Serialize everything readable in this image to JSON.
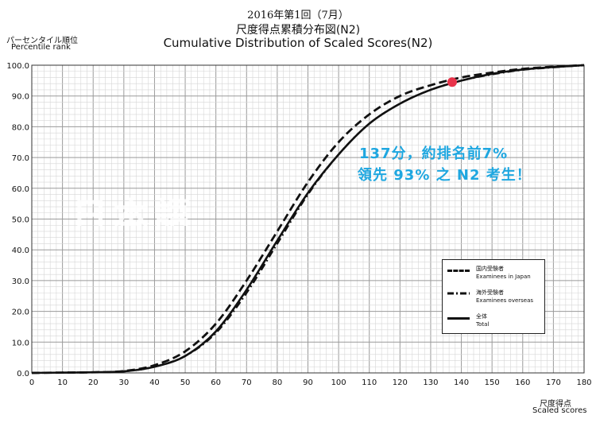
{
  "header": {
    "exam_date": "2016年第1回（7月）",
    "title_ja": "尺度得点累積分布図(N2)",
    "title_en": "Cumulative Distribution of Scaled Scores(N2)"
  },
  "axes": {
    "ylabel_ja": "パーセンタイル順位",
    "ylabel_en": "Percentile rank",
    "xlabel_ja": "尺度得点",
    "xlabel_en": "Scaled scores"
  },
  "annotation": {
    "line1": "137分，約排名前7%",
    "line2": "領先 93% 之 N2 考生！"
  },
  "watermark": "日本語",
  "legend": {
    "items": [
      {
        "ja": "国内受験者",
        "en": "Examinees in Japan"
      },
      {
        "ja": "海外受験者",
        "en": "Examinees overseas"
      },
      {
        "ja": "全体",
        "en": "Total"
      }
    ]
  },
  "colors": {
    "line": "#111111",
    "grid": "#bdbdbd",
    "marker": "#e8334a",
    "annotation": "#1fa7e0"
  },
  "chart_data": {
    "type": "line",
    "title": "Cumulative Distribution of Scaled Scores(N2)",
    "xlabel": "Scaled scores",
    "ylabel": "Percentile rank",
    "xlim": [
      0,
      180
    ],
    "ylim": [
      0,
      100
    ],
    "xticks": [
      "0",
      "10",
      "20",
      "30",
      "40",
      "50",
      "60",
      "70",
      "80",
      "90",
      "100",
      "110",
      "120",
      "130",
      "140",
      "150",
      "160",
      "170",
      "180"
    ],
    "yticks": [
      "0.0",
      "10.0",
      "20.0",
      "30.0",
      "40.0",
      "50.0",
      "60.0",
      "70.0",
      "80.0",
      "90.0",
      "100.0"
    ],
    "grid": true,
    "legend_position": "bottom-right",
    "x": [
      0,
      10,
      20,
      30,
      40,
      50,
      60,
      70,
      80,
      90,
      100,
      110,
      120,
      130,
      140,
      150,
      160,
      170,
      180
    ],
    "series": [
      {
        "name": "Examinees in Japan",
        "style": "dashed",
        "values": [
          0,
          0.1,
          0.2,
          0.6,
          2.5,
          7,
          16,
          30,
          46,
          62,
          75,
          84,
          90,
          93.5,
          96,
          97.6,
          98.8,
          99.5,
          100
        ]
      },
      {
        "name": "Examinees overseas",
        "style": "dashdot",
        "values": [
          0,
          0.1,
          0.2,
          0.5,
          2,
          5.5,
          13,
          26,
          42,
          58,
          71,
          81,
          87.5,
          92,
          95,
          97,
          98.5,
          99.3,
          100
        ]
      },
      {
        "name": "Total",
        "style": "solid",
        "values": [
          0,
          0.1,
          0.2,
          0.5,
          2,
          5.5,
          13.5,
          27,
          43,
          58.5,
          71,
          81,
          87.5,
          92,
          95,
          97.2,
          98.6,
          99.4,
          100
        ]
      }
    ],
    "marker": {
      "x": 137,
      "y": 94.5
    }
  }
}
